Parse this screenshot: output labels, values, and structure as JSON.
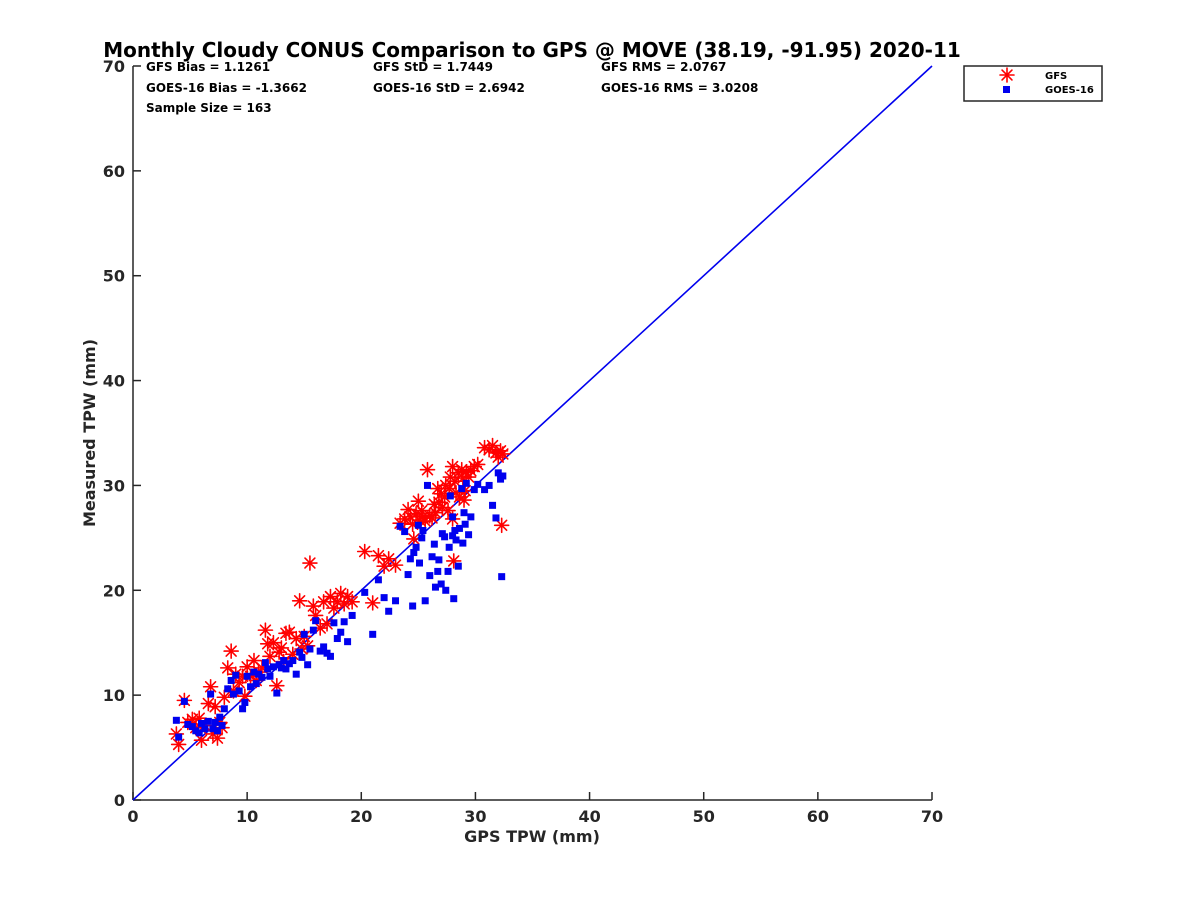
{
  "chart_data": {
    "type": "scatter",
    "title": "Monthly Cloudy CONUS Comparison to GPS @ MOVE (38.19, -91.95) 2020-11",
    "xlabel": "GPS TPW (mm)",
    "ylabel": "Measured TPW (mm)",
    "xlim": [
      0,
      70
    ],
    "ylim": [
      0,
      70
    ],
    "xticks": [
      "0",
      "10",
      "20",
      "30",
      "40",
      "50",
      "60",
      "70"
    ],
    "yticks": [
      "0",
      "10",
      "20",
      "30",
      "40",
      "50",
      "60",
      "70"
    ],
    "grid": false,
    "legend_position": "top-right",
    "stats": [
      "GFS Bias = 1.1261",
      "GFS StD = 1.7449",
      "GFS RMS = 2.0767",
      "GOES-16 Bias = -1.3662",
      "GOES-16 StD = 2.6942",
      "GOES-16 RMS = 3.0208",
      "Sample Size = 163"
    ],
    "reference_line": {
      "x": [
        0,
        70
      ],
      "y": [
        0,
        70
      ],
      "color": "#0000ee"
    },
    "series": [
      {
        "name": "GFS",
        "marker": "asterisk",
        "color": "#ff0000",
        "points": [
          [
            3.8,
            6.3
          ],
          [
            4.0,
            5.3
          ],
          [
            4.5,
            9.5
          ],
          [
            4.8,
            7.4
          ],
          [
            5.2,
            7.7
          ],
          [
            5.5,
            6.9
          ],
          [
            5.8,
            7.8
          ],
          [
            6.0,
            5.7
          ],
          [
            6.3,
            7.1
          ],
          [
            6.6,
            9.2
          ],
          [
            6.8,
            10.8
          ],
          [
            7.0,
            6.3
          ],
          [
            7.2,
            8.9
          ],
          [
            7.4,
            5.9
          ],
          [
            7.6,
            7.4
          ],
          [
            7.8,
            6.9
          ],
          [
            8.0,
            9.8
          ],
          [
            8.3,
            12.6
          ],
          [
            8.6,
            14.2
          ],
          [
            8.8,
            10.4
          ],
          [
            9.0,
            12.0
          ],
          [
            9.3,
            11.2
          ],
          [
            9.6,
            11.8
          ],
          [
            9.8,
            9.9
          ],
          [
            10.0,
            12.7
          ],
          [
            10.3,
            11.8
          ],
          [
            10.6,
            13.3
          ],
          [
            10.8,
            11.4
          ],
          [
            11.0,
            12.2
          ],
          [
            11.3,
            12.6
          ],
          [
            11.6,
            16.2
          ],
          [
            11.8,
            14.9
          ],
          [
            12.0,
            13.7
          ],
          [
            12.3,
            15.0
          ],
          [
            12.6,
            10.9
          ],
          [
            12.8,
            14.1
          ],
          [
            13.0,
            14.5
          ],
          [
            13.2,
            13.2
          ],
          [
            13.4,
            15.9
          ],
          [
            13.7,
            16.0
          ],
          [
            14.0,
            13.9
          ],
          [
            14.3,
            15.4
          ],
          [
            14.6,
            19.0
          ],
          [
            14.8,
            14.4
          ],
          [
            15.0,
            15.6
          ],
          [
            15.3,
            14.7
          ],
          [
            15.5,
            22.6
          ],
          [
            15.8,
            18.5
          ],
          [
            16.0,
            17.6
          ],
          [
            16.4,
            16.4
          ],
          [
            16.7,
            18.9
          ],
          [
            17.0,
            16.8
          ],
          [
            17.3,
            19.4
          ],
          [
            17.6,
            18.3
          ],
          [
            17.9,
            18.9
          ],
          [
            18.2,
            19.7
          ],
          [
            18.5,
            18.7
          ],
          [
            18.8,
            19.4
          ],
          [
            19.2,
            18.9
          ],
          [
            20.3,
            23.7
          ],
          [
            21.0,
            18.8
          ],
          [
            21.5,
            23.3
          ],
          [
            22.0,
            22.3
          ],
          [
            22.4,
            23.0
          ],
          [
            23.0,
            22.4
          ],
          [
            23.4,
            26.4
          ],
          [
            23.8,
            26.8
          ],
          [
            24.1,
            27.7
          ],
          [
            24.3,
            27.0
          ],
          [
            24.5,
            26.3
          ],
          [
            24.6,
            24.9
          ],
          [
            24.8,
            27.3
          ],
          [
            25.0,
            28.5
          ],
          [
            25.1,
            26.7
          ],
          [
            25.3,
            27.6
          ],
          [
            25.4,
            27.0
          ],
          [
            25.6,
            26.6
          ],
          [
            25.8,
            31.5
          ],
          [
            26.0,
            27.1
          ],
          [
            26.2,
            26.9
          ],
          [
            26.4,
            28.2
          ],
          [
            26.5,
            27.4
          ],
          [
            26.7,
            29.7
          ],
          [
            26.8,
            28.4
          ],
          [
            27.0,
            29.2
          ],
          [
            27.1,
            27.9
          ],
          [
            27.3,
            28.9
          ],
          [
            27.4,
            30.0
          ],
          [
            27.6,
            27.6
          ],
          [
            27.7,
            29.7
          ],
          [
            27.8,
            30.8
          ],
          [
            28.0,
            31.8
          ],
          [
            28.0,
            26.8
          ],
          [
            28.1,
            22.8
          ],
          [
            28.2,
            30.4
          ],
          [
            28.3,
            29.3
          ],
          [
            28.5,
            31.2
          ],
          [
            28.6,
            28.9
          ],
          [
            28.8,
            31.5
          ],
          [
            28.9,
            30.7
          ],
          [
            29.0,
            28.6
          ],
          [
            29.1,
            29.5
          ],
          [
            29.2,
            31.3
          ],
          [
            29.4,
            30.8
          ],
          [
            29.6,
            31.4
          ],
          [
            29.9,
            31.8
          ],
          [
            30.2,
            32.0
          ],
          [
            30.8,
            33.6
          ],
          [
            31.2,
            33.4
          ],
          [
            31.5,
            33.8
          ],
          [
            31.8,
            33.1
          ],
          [
            32.0,
            32.7
          ],
          [
            32.2,
            33.3
          ],
          [
            32.3,
            26.2
          ],
          [
            32.4,
            33.0
          ]
        ]
      },
      {
        "name": "GOES-16",
        "marker": "square",
        "color": "#0000ee",
        "points": [
          [
            3.8,
            7.6
          ],
          [
            4.0,
            6.0
          ],
          [
            4.5,
            9.4
          ],
          [
            4.8,
            7.2
          ],
          [
            5.2,
            7.0
          ],
          [
            5.5,
            6.6
          ],
          [
            5.8,
            6.4
          ],
          [
            6.0,
            7.3
          ],
          [
            6.3,
            6.8
          ],
          [
            6.6,
            7.5
          ],
          [
            6.8,
            10.1
          ],
          [
            7.0,
            6.8
          ],
          [
            7.2,
            7.4
          ],
          [
            7.4,
            6.6
          ],
          [
            7.6,
            7.9
          ],
          [
            7.8,
            7.1
          ],
          [
            8.0,
            8.7
          ],
          [
            8.3,
            10.6
          ],
          [
            8.6,
            11.4
          ],
          [
            8.8,
            10.1
          ],
          [
            9.0,
            11.9
          ],
          [
            9.3,
            10.4
          ],
          [
            9.6,
            8.7
          ],
          [
            9.8,
            9.3
          ],
          [
            10.0,
            11.8
          ],
          [
            10.3,
            10.8
          ],
          [
            10.6,
            12.2
          ],
          [
            10.8,
            11.1
          ],
          [
            11.0,
            12.0
          ],
          [
            11.3,
            11.7
          ],
          [
            11.6,
            13.1
          ],
          [
            11.8,
            12.5
          ],
          [
            12.0,
            11.8
          ],
          [
            12.3,
            12.7
          ],
          [
            12.6,
            10.2
          ],
          [
            12.8,
            12.9
          ],
          [
            13.0,
            12.6
          ],
          [
            13.2,
            13.3
          ],
          [
            13.4,
            12.5
          ],
          [
            13.7,
            13.0
          ],
          [
            14.0,
            13.3
          ],
          [
            14.3,
            12.0
          ],
          [
            14.6,
            14.1
          ],
          [
            14.8,
            13.6
          ],
          [
            15.0,
            15.8
          ],
          [
            15.3,
            12.9
          ],
          [
            15.5,
            14.4
          ],
          [
            15.8,
            16.2
          ],
          [
            16.0,
            17.1
          ],
          [
            16.4,
            14.2
          ],
          [
            16.7,
            14.6
          ],
          [
            17.0,
            14.0
          ],
          [
            17.3,
            13.7
          ],
          [
            17.6,
            16.9
          ],
          [
            17.9,
            15.4
          ],
          [
            18.2,
            16.0
          ],
          [
            18.5,
            17.0
          ],
          [
            18.8,
            15.1
          ],
          [
            19.2,
            17.6
          ],
          [
            20.3,
            19.8
          ],
          [
            21.0,
            15.8
          ],
          [
            21.5,
            21.0
          ],
          [
            22.0,
            19.3
          ],
          [
            22.4,
            18.0
          ],
          [
            23.0,
            19.0
          ],
          [
            23.4,
            26.1
          ],
          [
            23.8,
            25.6
          ],
          [
            24.1,
            21.5
          ],
          [
            24.3,
            23.0
          ],
          [
            24.5,
            18.5
          ],
          [
            24.6,
            23.6
          ],
          [
            24.8,
            24.1
          ],
          [
            25.0,
            26.2
          ],
          [
            25.1,
            22.6
          ],
          [
            25.3,
            25.0
          ],
          [
            25.4,
            25.7
          ],
          [
            25.6,
            19.0
          ],
          [
            25.8,
            30.0
          ],
          [
            26.0,
            21.4
          ],
          [
            26.2,
            23.2
          ],
          [
            26.4,
            24.4
          ],
          [
            26.5,
            20.3
          ],
          [
            26.7,
            21.8
          ],
          [
            26.8,
            22.9
          ],
          [
            27.0,
            20.6
          ],
          [
            27.1,
            25.4
          ],
          [
            27.3,
            25.1
          ],
          [
            27.4,
            20.0
          ],
          [
            27.6,
            21.8
          ],
          [
            27.7,
            24.1
          ],
          [
            27.8,
            29.0
          ],
          [
            28.0,
            25.2
          ],
          [
            28.0,
            27.0
          ],
          [
            28.1,
            19.2
          ],
          [
            28.2,
            25.7
          ],
          [
            28.3,
            24.8
          ],
          [
            28.5,
            22.3
          ],
          [
            28.6,
            25.9
          ],
          [
            28.8,
            29.7
          ],
          [
            28.9,
            24.5
          ],
          [
            29.0,
            27.4
          ],
          [
            29.1,
            26.3
          ],
          [
            29.2,
            30.2
          ],
          [
            29.4,
            25.3
          ],
          [
            29.6,
            27.0
          ],
          [
            29.9,
            29.6
          ],
          [
            30.2,
            30.1
          ],
          [
            30.8,
            29.6
          ],
          [
            31.2,
            30.0
          ],
          [
            31.5,
            28.1
          ],
          [
            31.8,
            26.9
          ],
          [
            32.0,
            31.2
          ],
          [
            32.2,
            30.6
          ],
          [
            32.3,
            21.3
          ],
          [
            32.4,
            30.9
          ]
        ]
      }
    ]
  }
}
